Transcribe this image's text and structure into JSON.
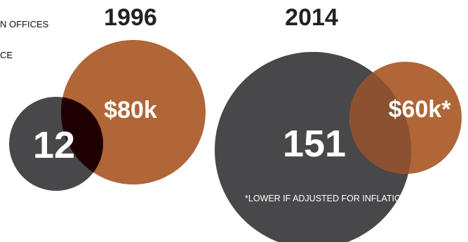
{
  "chart_data": {
    "type": "bubble-venn",
    "legend": [
      {
        "text": "N OFFICES",
        "color": "#48484a"
      },
      {
        "text": "CE",
        "color": "#b06637"
      }
    ],
    "groups": [
      {
        "year": "1996",
        "count": 12,
        "count_label": "12",
        "budget": 80,
        "budget_label": "$80k",
        "overlap_color": "#1f0000"
      },
      {
        "year": "2014",
        "count": 151,
        "count_label": "151",
        "budget": 60,
        "budget_label": "$60k*",
        "overlap_color": "#8b5130"
      }
    ],
    "footnote": "*LOWER IF ADJUSTED FOR  INFLATION",
    "colors": {
      "count_circle": "#48484a",
      "budget_circle": "#b06637",
      "year_text": "#222222"
    }
  }
}
